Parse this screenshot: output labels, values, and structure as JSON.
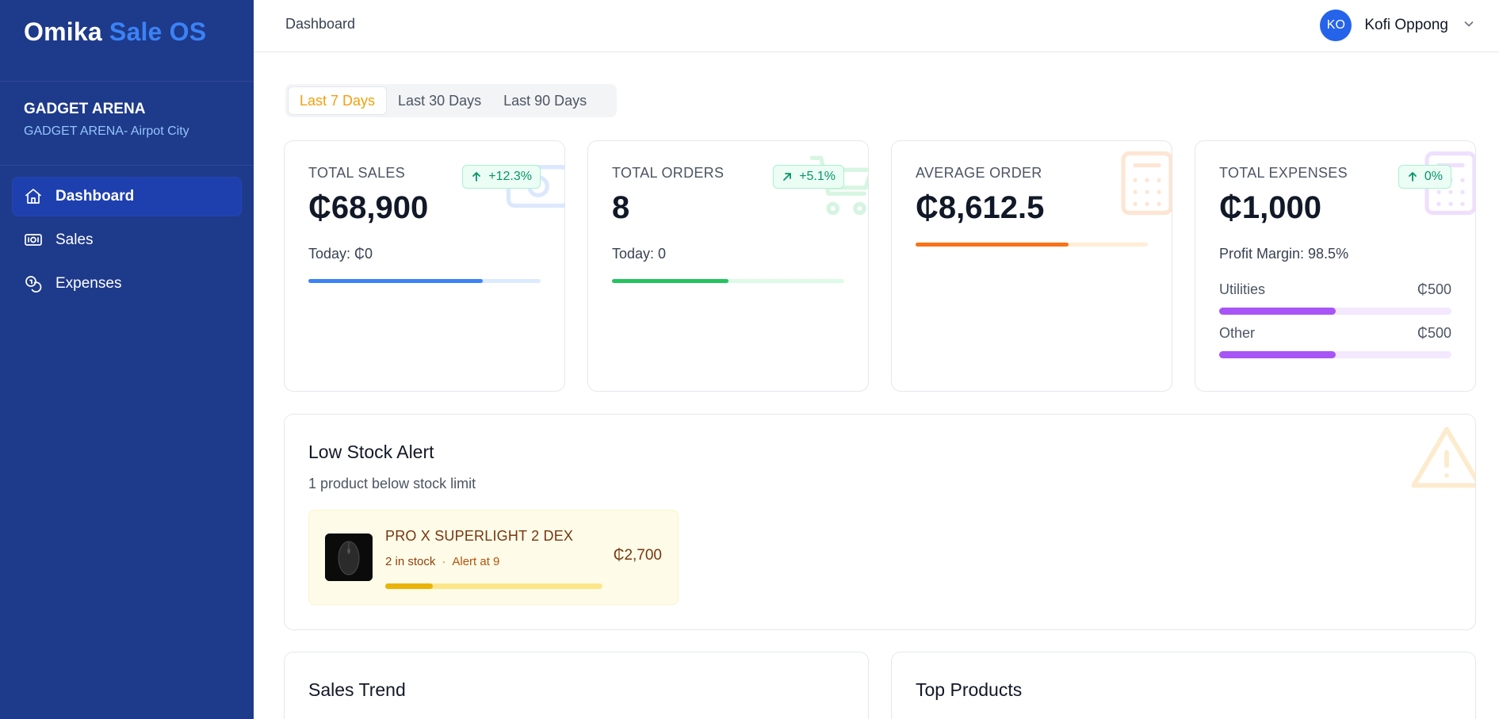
{
  "brand": {
    "name": "Omika",
    "accent": "Sale OS"
  },
  "store": {
    "name": "GADGET ARENA",
    "branch": "GADGET ARENA- Airpot City"
  },
  "nav": [
    {
      "label": "Dashboard",
      "icon": "home-icon",
      "active": true
    },
    {
      "label": "Sales",
      "icon": "banknote-icon",
      "active": false
    },
    {
      "label": "Expenses",
      "icon": "coins-icon",
      "active": false
    }
  ],
  "topbar": {
    "breadcrumb": "Dashboard",
    "user": {
      "initials": "KO",
      "name": "Kofi Oppong"
    }
  },
  "tabs": [
    {
      "label": "Last 7 Days",
      "active": true
    },
    {
      "label": "Last 30 Days",
      "active": false
    },
    {
      "label": "Last 90 Days",
      "active": false
    }
  ],
  "stats": {
    "total_sales": {
      "label": "TOTAL SALES",
      "value": "₵68,900",
      "badge": "+12.3%",
      "sub": "Today: ₵0",
      "progress": 0.75,
      "color": "#3b82f6",
      "track": "#dbeafe"
    },
    "total_orders": {
      "label": "TOTAL ORDERS",
      "value": "8",
      "badge": "+5.1%",
      "sub": "Today: 0",
      "progress": 0.5,
      "color": "#22c55e",
      "track": "#dcfce7"
    },
    "average_order": {
      "label": "AVERAGE ORDER",
      "value": "₵8,612.5",
      "progress": 0.66,
      "color": "#f97316",
      "track": "#ffedd5"
    },
    "total_expenses": {
      "label": "TOTAL EXPENSES",
      "value": "₵1,000",
      "badge": "0%",
      "sub": "Profit Margin: 98.5%",
      "breakdown": [
        {
          "label": "Utilities",
          "amount": "₵500",
          "progress": 0.5
        },
        {
          "label": "Other",
          "amount": "₵500",
          "progress": 0.5
        }
      ],
      "color": "#a855f7",
      "track": "#f3e8ff"
    }
  },
  "low_stock": {
    "title": "Low Stock Alert",
    "subtitle": "1 product below stock limit",
    "items": [
      {
        "name": "PRO X SUPERLIGHT 2 DEX",
        "stock": "2 in stock",
        "alert": "Alert at 9",
        "price": "₵2,700",
        "progress": 0.22
      }
    ]
  },
  "sections": {
    "sales_trend": "Sales Trend",
    "top_products": "Top Products"
  }
}
